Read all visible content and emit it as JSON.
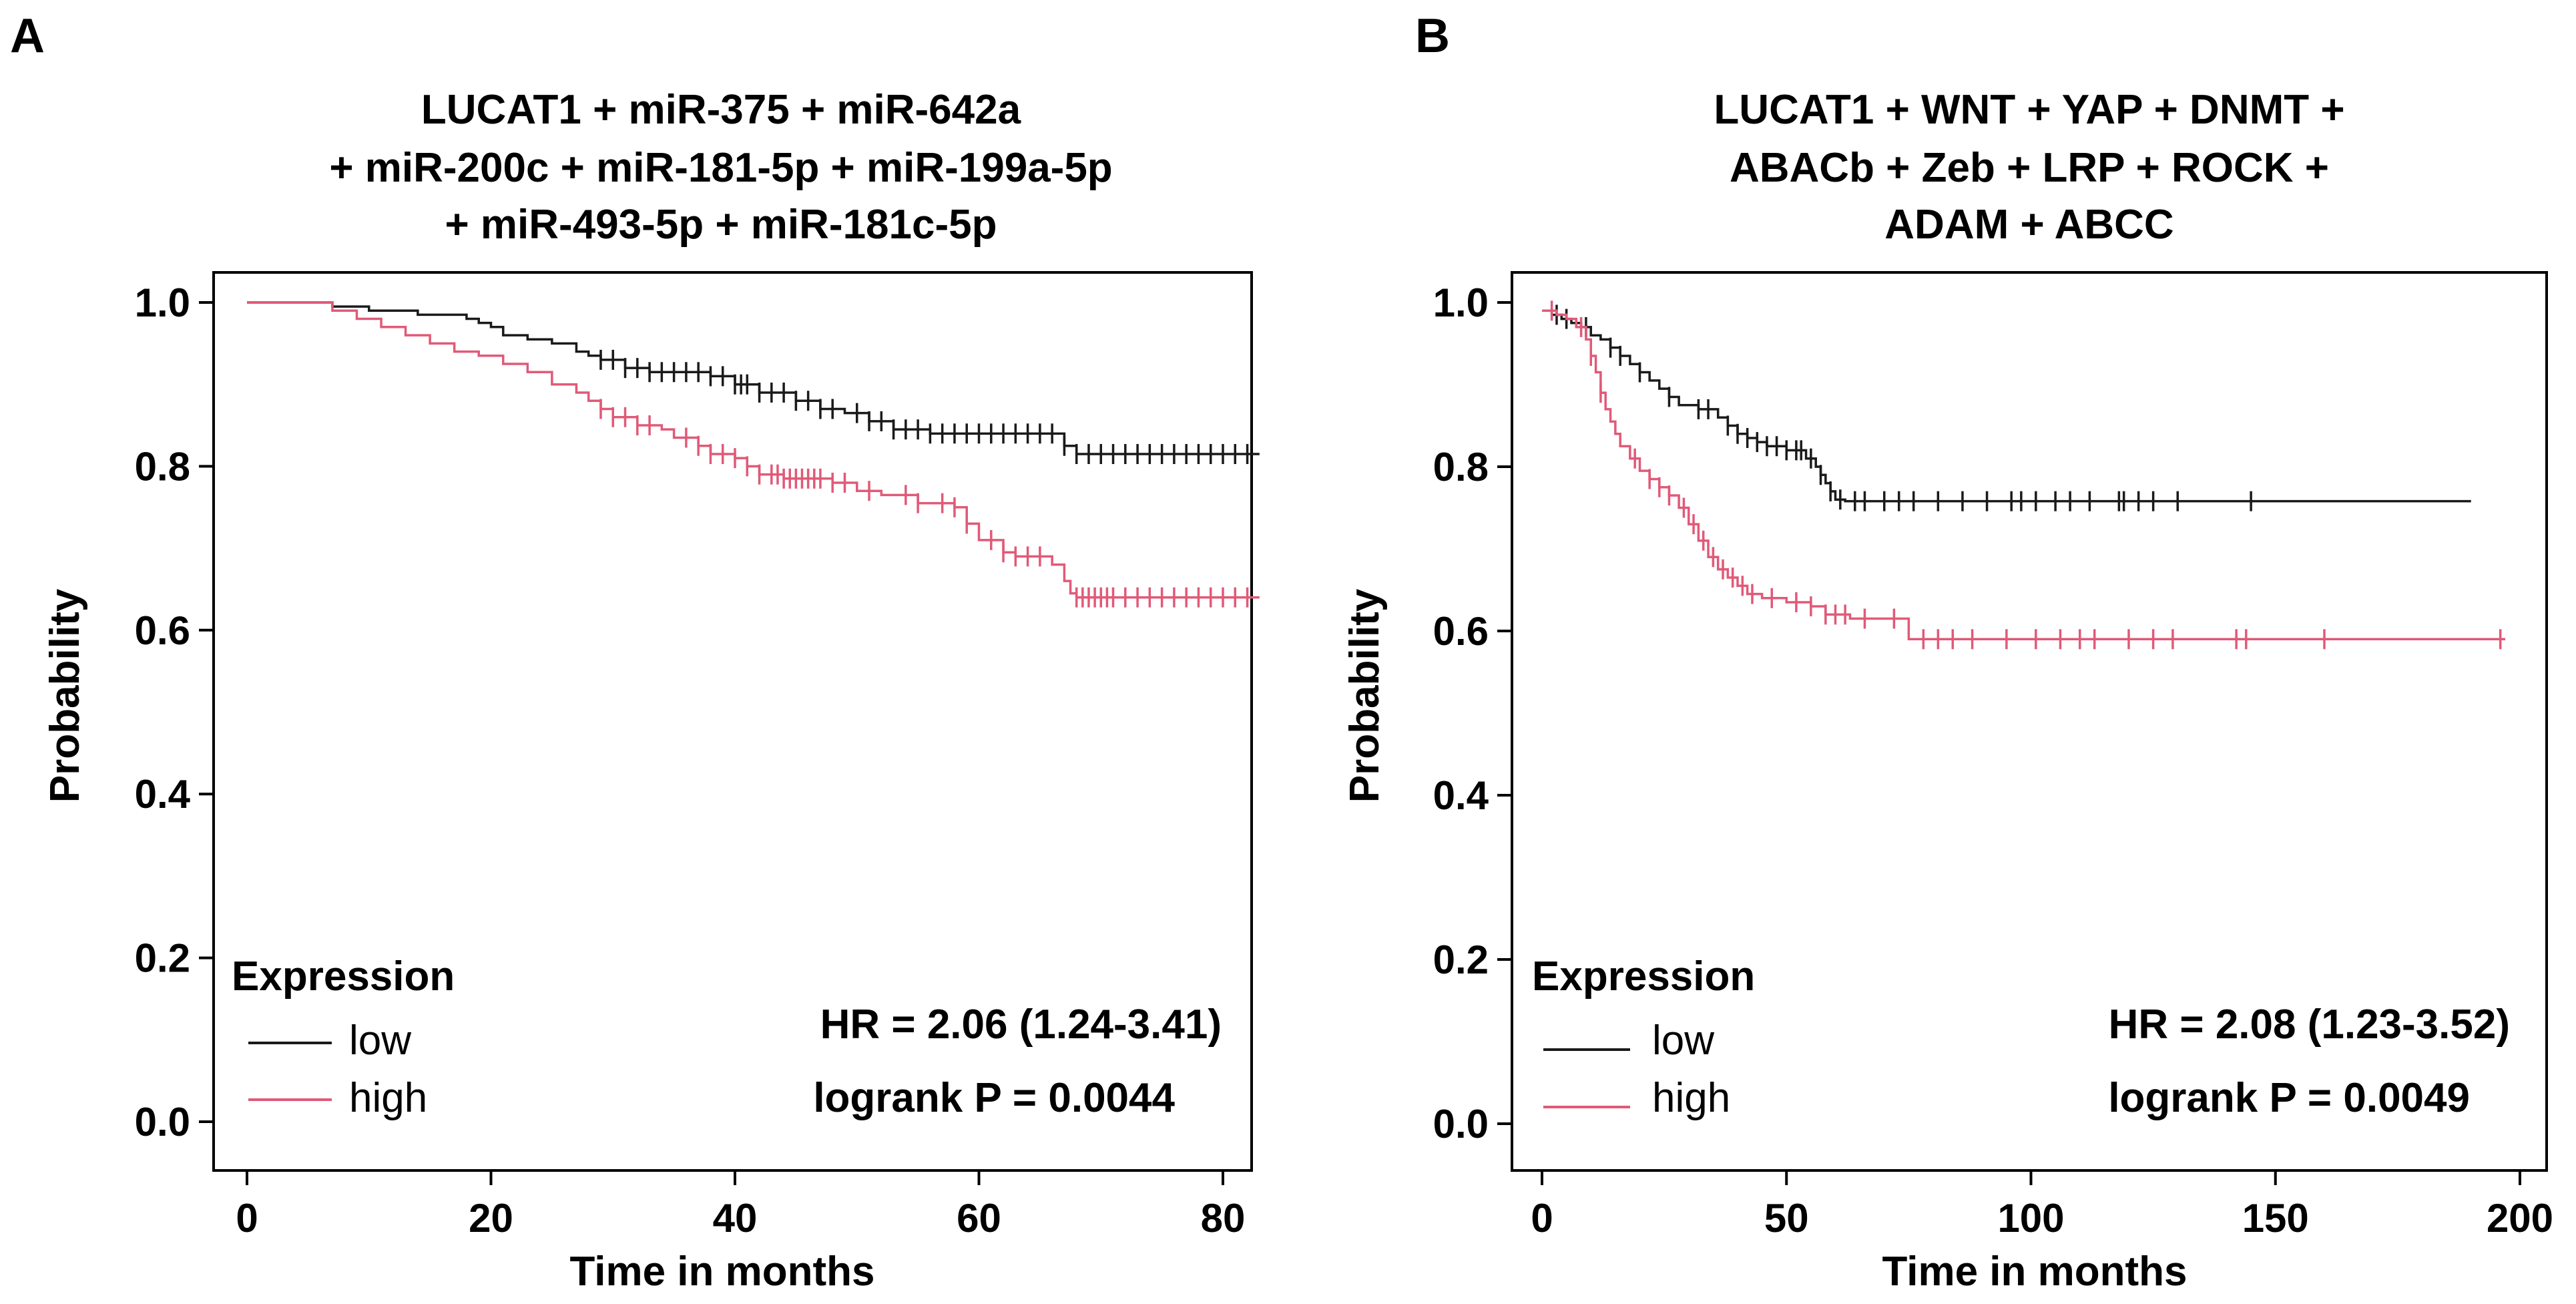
{
  "colors": {
    "low": "#1a1a1a",
    "high": "#e05a78",
    "axis": "#000000"
  },
  "chart_data": [
    {
      "type": "line",
      "panel_label": "A",
      "title_lines": [
        "LUCAT1 + miR-375 + miR-642a",
        "+ miR-200c + miR-181-5p + miR-199a-5p",
        "+ miR-493-5p + miR-181c-5p"
      ],
      "xlabel": "Time in months",
      "ylabel": "Probability",
      "xlim": [
        0,
        85
      ],
      "ylim": [
        0,
        1.0
      ],
      "xticks": [
        0,
        20,
        40,
        60,
        80
      ],
      "xtick_labels": [
        "0",
        "20",
        "40",
        "60",
        "80"
      ],
      "yticks": [
        0,
        0.2,
        0.4,
        0.6,
        0.8,
        1.0
      ],
      "ytick_labels": [
        "0.0",
        "0.2",
        "0.4",
        "0.6",
        "0.8",
        "1.0"
      ],
      "legend_title": "Expression",
      "legend_position": "bottom-left",
      "hr_text": "HR = 2.06 (1.24-3.41)",
      "p_text": "logrank P = 0.0044",
      "series": [
        {
          "name": "low",
          "steps": [
            [
              0,
              1.0
            ],
            [
              6,
              1.0
            ],
            [
              7,
              0.995
            ],
            [
              10,
              0.99
            ],
            [
              14,
              0.985
            ],
            [
              18,
              0.98
            ],
            [
              19,
              0.975
            ],
            [
              20,
              0.97
            ],
            [
              21,
              0.96
            ],
            [
              23,
              0.955
            ],
            [
              25,
              0.95
            ],
            [
              27,
              0.94
            ],
            [
              28,
              0.935
            ],
            [
              29,
              0.93
            ],
            [
              31,
              0.92
            ],
            [
              33,
              0.915
            ],
            [
              38,
              0.91
            ],
            [
              40,
              0.9
            ],
            [
              42,
              0.89
            ],
            [
              45,
              0.88
            ],
            [
              47,
              0.87
            ],
            [
              49,
              0.865
            ],
            [
              51,
              0.855
            ],
            [
              53,
              0.845
            ],
            [
              56,
              0.84
            ],
            [
              67,
              0.825
            ],
            [
              68,
              0.815
            ],
            [
              83,
              0.815
            ]
          ],
          "censors": [
            29,
            30,
            31,
            32,
            33,
            34,
            35,
            36,
            37,
            38,
            39,
            40,
            40.5,
            41,
            42,
            43,
            44,
            45,
            46,
            47,
            48,
            50,
            51,
            52,
            53,
            54,
            55,
            56,
            57,
            58,
            59,
            60,
            61,
            62,
            63,
            64,
            65,
            66,
            67,
            68,
            69,
            70,
            71,
            72,
            73,
            74,
            75,
            76,
            77,
            78,
            79,
            80,
            81,
            82
          ]
        },
        {
          "name": "high",
          "steps": [
            [
              0,
              1.0
            ],
            [
              6,
              1.0
            ],
            [
              7,
              0.99
            ],
            [
              9,
              0.98
            ],
            [
              11,
              0.97
            ],
            [
              13,
              0.96
            ],
            [
              15,
              0.95
            ],
            [
              17,
              0.94
            ],
            [
              19,
              0.935
            ],
            [
              21,
              0.925
            ],
            [
              23,
              0.915
            ],
            [
              25,
              0.9
            ],
            [
              27,
              0.89
            ],
            [
              28,
              0.88
            ],
            [
              29,
              0.87
            ],
            [
              30,
              0.86
            ],
            [
              32,
              0.85
            ],
            [
              34,
              0.845
            ],
            [
              35,
              0.835
            ],
            [
              37,
              0.825
            ],
            [
              38,
              0.815
            ],
            [
              40,
              0.81
            ],
            [
              41,
              0.8
            ],
            [
              42,
              0.79
            ],
            [
              44,
              0.785
            ],
            [
              48,
              0.78
            ],
            [
              50,
              0.77
            ],
            [
              52,
              0.765
            ],
            [
              55,
              0.755
            ],
            [
              58,
              0.75
            ],
            [
              59,
              0.73
            ],
            [
              60,
              0.71
            ],
            [
              62,
              0.695
            ],
            [
              63,
              0.69
            ],
            [
              66,
              0.68
            ],
            [
              67,
              0.66
            ],
            [
              67.5,
              0.645
            ],
            [
              68,
              0.64
            ],
            [
              83,
              0.64
            ]
          ],
          "censors": [
            29,
            30,
            31,
            32,
            33,
            36,
            37,
            38,
            39,
            40,
            41,
            42,
            43,
            43.5,
            44,
            44.5,
            45,
            45.5,
            46,
            46.5,
            47,
            48,
            49,
            51,
            54,
            55,
            57,
            58,
            59,
            61,
            62,
            63,
            64,
            65,
            68,
            68.5,
            69,
            69.5,
            70,
            70.5,
            71,
            72,
            73,
            74,
            75,
            76,
            77,
            78,
            79,
            80,
            81,
            82
          ]
        }
      ]
    },
    {
      "type": "line",
      "panel_label": "B",
      "title_lines": [
        "LUCAT1 + WNT + YAP + DNMT +",
        "ABACb + Zeb + LRP + ROCK +",
        "ADAM + ABCC"
      ],
      "xlabel": "Time in months",
      "ylabel": "Probability",
      "xlim": [
        -5,
        202
      ],
      "ylim": [
        0,
        1.0
      ],
      "xticks": [
        0,
        50,
        100,
        150,
        200
      ],
      "xtick_labels": [
        "0",
        "50",
        "100",
        "150",
        "200"
      ],
      "yticks": [
        0,
        0.2,
        0.4,
        0.6,
        0.8,
        1.0
      ],
      "ytick_labels": [
        "0.0",
        "0.2",
        "0.4",
        "0.6",
        "0.8",
        "1.0"
      ],
      "legend_title": "Expression",
      "legend_position": "bottom-left",
      "hr_text": "HR = 2.08 (1.23-3.52)",
      "p_text": "logrank P = 0.0049",
      "series": [
        {
          "name": "low",
          "steps": [
            [
              0,
              0.99
            ],
            [
              2,
              0.985
            ],
            [
              4,
              0.98
            ],
            [
              6,
              0.975
            ],
            [
              8,
              0.97
            ],
            [
              10,
              0.96
            ],
            [
              12,
              0.955
            ],
            [
              14,
              0.945
            ],
            [
              16,
              0.935
            ],
            [
              18,
              0.925
            ],
            [
              20,
              0.915
            ],
            [
              22,
              0.905
            ],
            [
              24,
              0.895
            ],
            [
              26,
              0.885
            ],
            [
              28,
              0.875
            ],
            [
              32,
              0.87
            ],
            [
              36,
              0.86
            ],
            [
              38,
              0.85
            ],
            [
              40,
              0.84
            ],
            [
              42,
              0.835
            ],
            [
              44,
              0.83
            ],
            [
              46,
              0.825
            ],
            [
              50,
              0.82
            ],
            [
              54,
              0.81
            ],
            [
              56,
              0.8
            ],
            [
              57,
              0.79
            ],
            [
              58,
              0.78
            ],
            [
              59,
              0.77
            ],
            [
              60,
              0.76
            ],
            [
              62,
              0.758
            ],
            [
              190,
              0.758
            ]
          ],
          "censors": [
            3,
            5,
            9,
            14,
            16,
            20,
            26,
            32,
            34,
            38,
            40,
            42,
            44,
            46,
            48,
            50,
            52,
            53,
            55,
            57,
            59,
            61,
            64,
            66,
            70,
            73,
            76,
            81,
            86,
            91,
            96,
            98,
            101,
            105,
            108,
            112,
            118,
            119,
            122,
            125,
            130,
            145
          ]
        },
        {
          "name": "high",
          "steps": [
            [
              0,
              0.99
            ],
            [
              3,
              0.985
            ],
            [
              5,
              0.98
            ],
            [
              7,
              0.97
            ],
            [
              9,
              0.955
            ],
            [
              10,
              0.935
            ],
            [
              11,
              0.915
            ],
            [
              12,
              0.89
            ],
            [
              13,
              0.87
            ],
            [
              14,
              0.855
            ],
            [
              15,
              0.84
            ],
            [
              16,
              0.825
            ],
            [
              18,
              0.81
            ],
            [
              20,
              0.795
            ],
            [
              22,
              0.785
            ],
            [
              24,
              0.775
            ],
            [
              26,
              0.765
            ],
            [
              28,
              0.75
            ],
            [
              30,
              0.73
            ],
            [
              32,
              0.71
            ],
            [
              34,
              0.69
            ],
            [
              36,
              0.675
            ],
            [
              38,
              0.665
            ],
            [
              40,
              0.655
            ],
            [
              42,
              0.645
            ],
            [
              45,
              0.64
            ],
            [
              50,
              0.635
            ],
            [
              55,
              0.63
            ],
            [
              58,
              0.62
            ],
            [
              63,
              0.615
            ],
            [
              75,
              0.59
            ],
            [
              197,
              0.59
            ]
          ],
          "censors": [
            2,
            8,
            10,
            12,
            19,
            22,
            24,
            26,
            29,
            31,
            33,
            35,
            37,
            39,
            41,
            43,
            47,
            52,
            55,
            58,
            60,
            62,
            66,
            72,
            78,
            81,
            84,
            88,
            95,
            101,
            106,
            110,
            113,
            120,
            125,
            129,
            142,
            144,
            160,
            196
          ]
        }
      ]
    }
  ]
}
